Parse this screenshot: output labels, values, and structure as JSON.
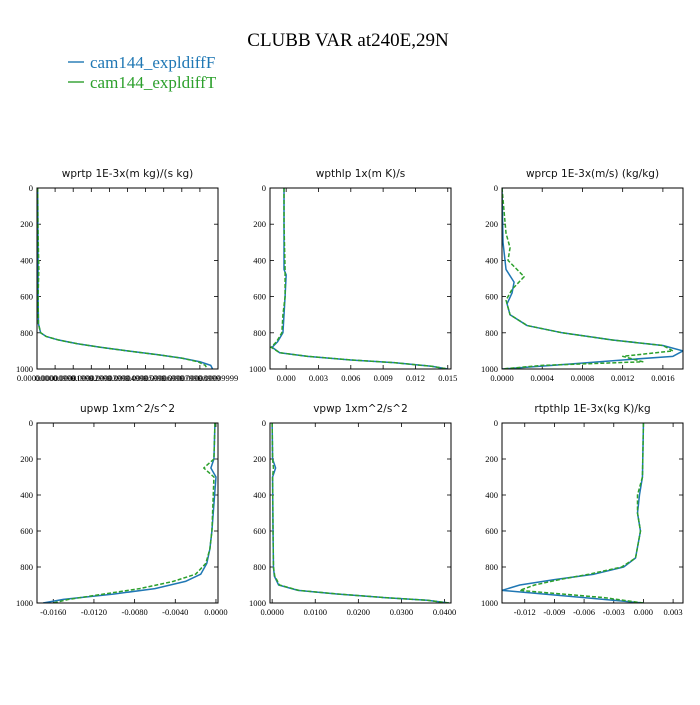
{
  "title": "CLUBB VAR at240E,29N",
  "legend": [
    {
      "name": "cam144_expldiffF",
      "color": "#1f77b4",
      "dash": "solid"
    },
    {
      "name": "cam144_expldiffT",
      "color": "#2ca02c",
      "dash": "dashed"
    }
  ],
  "chart_data": [
    {
      "type": "line",
      "title": "wprtp  1E-3x(m kg)/(s kg)",
      "xlabel": "",
      "ylabel": "",
      "xlim": [
        0.0,
        0.0001
      ],
      "ylim": [
        1000,
        0
      ],
      "x_tick_labels": [
        "0.00000000",
        "0.00000999",
        "0.00001999",
        "0.00002999",
        "0.00003999",
        "0.00004999",
        "0.00005999",
        "0.00006999",
        "0.00007999",
        "0.00008999",
        "0.00009999"
      ],
      "y_ticks": [
        0,
        200,
        400,
        600,
        800,
        1000
      ],
      "series": [
        {
          "name": "cam144_expldiffF",
          "color": "#1f77b4",
          "x": [
            4e-07,
            5e-07,
            6e-07,
            6e-07,
            8e-07,
            2e-06,
            5e-06,
            1.2e-05,
            2.2e-05,
            3.5e-05,
            5e-05,
            6.6e-05,
            8e-05,
            9e-05,
            9.6e-05,
            9.7e-05
          ],
          "y": [
            0,
            200,
            400,
            600,
            750,
            800,
            820,
            840,
            860,
            880,
            900,
            920,
            940,
            960,
            980,
            1000
          ]
        },
        {
          "name": "cam144_expldiffT",
          "color": "#2ca02c",
          "x": [
            4e-07,
            5e-07,
            1e-06,
            6e-07,
            8e-07,
            2e-06,
            5e-06,
            1.2e-05,
            2.2e-05,
            3.5e-05,
            5e-05,
            6.6e-05,
            8e-05,
            8.9e-05,
            9.3e-05,
            9.4e-05
          ],
          "y": [
            0,
            200,
            450,
            600,
            750,
            800,
            820,
            840,
            860,
            880,
            900,
            920,
            940,
            960,
            980,
            1000
          ]
        }
      ]
    },
    {
      "type": "line",
      "title": "wpthlp  1x(m K)/s",
      "xlabel": "",
      "ylabel": "",
      "xlim": [
        -0.0015,
        0.0153
      ],
      "ylim": [
        1000,
        0
      ],
      "x_tick_labels": [
        "0.000",
        "0.003",
        "0.006",
        "0.009",
        "0.012",
        "0.015"
      ],
      "x_ticks": [
        0.0,
        0.003,
        0.006,
        0.009,
        0.012,
        0.015
      ],
      "y_ticks": [
        0,
        200,
        400,
        600,
        800,
        1000
      ],
      "series": [
        {
          "name": "cam144_expldiffF",
          "color": "#1f77b4",
          "x": [
            -0.0002,
            -0.0002,
            -0.0002,
            0.0,
            -0.0001,
            -0.0002,
            -0.0003,
            -0.0008,
            -0.0013,
            -0.0006,
            0.002,
            0.006,
            0.01,
            0.0135,
            0.015
          ],
          "y": [
            0,
            200,
            450,
            480,
            600,
            700,
            800,
            850,
            880,
            910,
            930,
            950,
            965,
            985,
            1000
          ]
        },
        {
          "name": "cam144_expldiffT",
          "color": "#2ca02c",
          "x": [
            -0.0002,
            -0.0002,
            -0.0001,
            -0.0001,
            -0.0001,
            -0.0003,
            -0.0004,
            -0.0009,
            -0.0014,
            -0.0006,
            0.002,
            0.006,
            0.01,
            0.0135,
            0.015
          ],
          "y": [
            0,
            200,
            450,
            480,
            600,
            700,
            800,
            850,
            880,
            910,
            930,
            950,
            965,
            985,
            1000
          ]
        }
      ]
    },
    {
      "type": "line",
      "title": "wprcp  1E-3x(m/s) (kg/kg)",
      "xlabel": "",
      "ylabel": "",
      "xlim": [
        0.0,
        0.0018
      ],
      "ylim": [
        1000,
        0
      ],
      "x_tick_labels": [
        "0.0000",
        "0.0004",
        "0.0008",
        "0.0012",
        "0.0016"
      ],
      "x_ticks": [
        0.0,
        0.0004,
        0.0008,
        0.0012,
        0.0016
      ],
      "y_ticks": [
        0,
        200,
        400,
        600,
        800,
        1000
      ],
      "series": [
        {
          "name": "cam144_expldiffF",
          "color": "#1f77b4",
          "x": [
            0.0,
            1e-05,
            3e-05,
            4e-05,
            0.00012,
            0.0001,
            5e-05,
            8e-05,
            0.00025,
            0.0006,
            0.0011,
            0.0016,
            0.0018,
            0.0017,
            0.0012,
            0.0005,
            0.0
          ],
          "y": [
            0,
            300,
            400,
            450,
            520,
            580,
            640,
            700,
            760,
            800,
            840,
            870,
            900,
            930,
            950,
            980,
            1000
          ]
        },
        {
          "name": "cam144_expldiffT",
          "color": "#2ca02c",
          "x": [
            0.0,
            4e-05,
            8e-05,
            6e-05,
            0.00022,
            0.0001,
            4e-05,
            8e-05,
            0.00025,
            0.0006,
            0.0011,
            0.0016,
            0.0017,
            0.0012,
            0.0014,
            0.0004,
            0.0
          ],
          "y": [
            0,
            250,
            330,
            400,
            490,
            560,
            620,
            700,
            760,
            800,
            840,
            870,
            900,
            930,
            960,
            980,
            1000
          ]
        }
      ]
    },
    {
      "type": "line",
      "title": "upwp  1xm^2/s^2",
      "xlabel": "",
      "ylabel": "",
      "xlim": [
        -0.0176,
        0.0002
      ],
      "ylim": [
        1000,
        0
      ],
      "x_tick_labels": [
        "-0.0160",
        "-0.0120",
        "-0.0080",
        "-0.0040",
        "0.0000"
      ],
      "x_ticks": [
        -0.016,
        -0.012,
        -0.008,
        -0.004,
        0.0
      ],
      "y_ticks": [
        0,
        200,
        400,
        600,
        800,
        1000
      ],
      "series": [
        {
          "name": "cam144_expldiffF",
          "color": "#1f77b4",
          "x": [
            -0.0001,
            -0.0002,
            -0.0005,
            0.0,
            -0.0004,
            -0.0006,
            -0.0009,
            -0.0015,
            -0.003,
            -0.006,
            -0.01,
            -0.015,
            -0.017
          ],
          "y": [
            0,
            200,
            250,
            300,
            600,
            700,
            780,
            840,
            880,
            920,
            950,
            980,
            1000
          ]
        },
        {
          "name": "cam144_expldiffT",
          "color": "#2ca02c",
          "x": [
            -0.0001,
            -0.0002,
            -0.0012,
            -0.0002,
            -0.0004,
            -0.0006,
            -0.001,
            -0.002,
            -0.0042,
            -0.0075,
            -0.011,
            -0.0145,
            -0.016
          ],
          "y": [
            0,
            200,
            250,
            300,
            600,
            700,
            780,
            840,
            880,
            920,
            950,
            980,
            1000
          ]
        }
      ]
    },
    {
      "type": "line",
      "title": "vpwp  1xm^2/s^2",
      "xlabel": "",
      "ylabel": "",
      "xlim": [
        -0.0005,
        0.0415
      ],
      "ylim": [
        1000,
        0
      ],
      "x_tick_labels": [
        "0.0000",
        "0.0100",
        "0.0200",
        "0.0300",
        "0.0400"
      ],
      "x_ticks": [
        0.0,
        0.01,
        0.02,
        0.03,
        0.04
      ],
      "y_ticks": [
        0,
        200,
        400,
        600,
        800,
        1000
      ],
      "series": [
        {
          "name": "cam144_expldiffF",
          "color": "#1f77b4",
          "x": [
            0.0,
            0.0001,
            0.0008,
            0.0001,
            0.0002,
            0.0003,
            0.0005,
            0.0015,
            0.006,
            0.015,
            0.026,
            0.036,
            0.041
          ],
          "y": [
            0,
            200,
            250,
            300,
            600,
            800,
            850,
            900,
            930,
            950,
            970,
            985,
            1000
          ]
        },
        {
          "name": "cam144_expldiffT",
          "color": "#2ca02c",
          "x": [
            0.0,
            0.0001,
            0.0003,
            0.0001,
            0.0002,
            0.0003,
            0.0006,
            0.0017,
            0.0062,
            0.0152,
            0.0262,
            0.036,
            0.041
          ],
          "y": [
            0,
            200,
            250,
            300,
            600,
            800,
            850,
            900,
            930,
            950,
            970,
            985,
            1000
          ]
        }
      ]
    },
    {
      "type": "line",
      "title": "rtpthlp  1E-3x(kg K)/kg",
      "xlabel": "",
      "ylabel": "",
      "xlim": [
        -0.0143,
        0.004
      ],
      "ylim": [
        1000,
        0
      ],
      "x_tick_labels": [
        "-0.012",
        "-0.009",
        "-0.006",
        "-0.003",
        "0.000",
        "0.003"
      ],
      "x_ticks": [
        -0.012,
        -0.009,
        -0.006,
        -0.003,
        0.0,
        0.003
      ],
      "y_ticks": [
        0,
        200,
        400,
        600,
        800,
        1000
      ],
      "series": [
        {
          "name": "cam144_expldiffF",
          "color": "#1f77b4",
          "x": [
            0.0,
            -0.0001,
            -0.0004,
            -0.0006,
            -0.0003,
            -0.0008,
            -0.002,
            -0.005,
            -0.009,
            -0.0125,
            -0.0143,
            -0.006,
            0.0
          ],
          "y": [
            0,
            300,
            400,
            500,
            600,
            750,
            800,
            840,
            870,
            900,
            930,
            970,
            1000
          ]
        },
        {
          "name": "cam144_expldiffT",
          "color": "#2ca02c",
          "x": [
            0.0,
            -0.0001,
            -0.0006,
            -0.0006,
            -0.0003,
            -0.0008,
            -0.0022,
            -0.0055,
            -0.0085,
            -0.011,
            -0.0125,
            -0.004,
            0.0
          ],
          "y": [
            0,
            300,
            400,
            500,
            600,
            750,
            800,
            840,
            870,
            900,
            930,
            970,
            1000
          ]
        }
      ]
    }
  ]
}
